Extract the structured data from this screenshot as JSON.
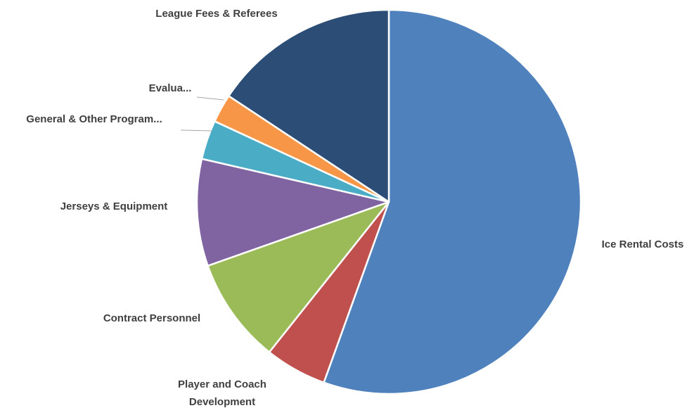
{
  "chart_data": {
    "type": "pie",
    "title": "",
    "start_angle_deg": 0,
    "direction": "clockwise",
    "slices": [
      {
        "label": "Ice Rental Costs",
        "value": 55.5,
        "color": "#4F81BD"
      },
      {
        "label": "Player and Coach Development",
        "label_lines": [
          "Player and Coach",
          "Development"
        ],
        "value": 5.2,
        "color": "#C0504D"
      },
      {
        "label": "Contract Personnel",
        "value": 8.9,
        "color": "#9BBB59"
      },
      {
        "label": "Jerseys & Equipment",
        "value": 9.0,
        "color": "#8064A2"
      },
      {
        "label": "General & Other Program...",
        "value": 3.3,
        "color": "#4BACC6"
      },
      {
        "label": "Evalua...",
        "value": 2.4,
        "color": "#F79646"
      },
      {
        "label": "League Fees & Referees",
        "value": 15.7,
        "color": "#2C4D75"
      }
    ]
  }
}
